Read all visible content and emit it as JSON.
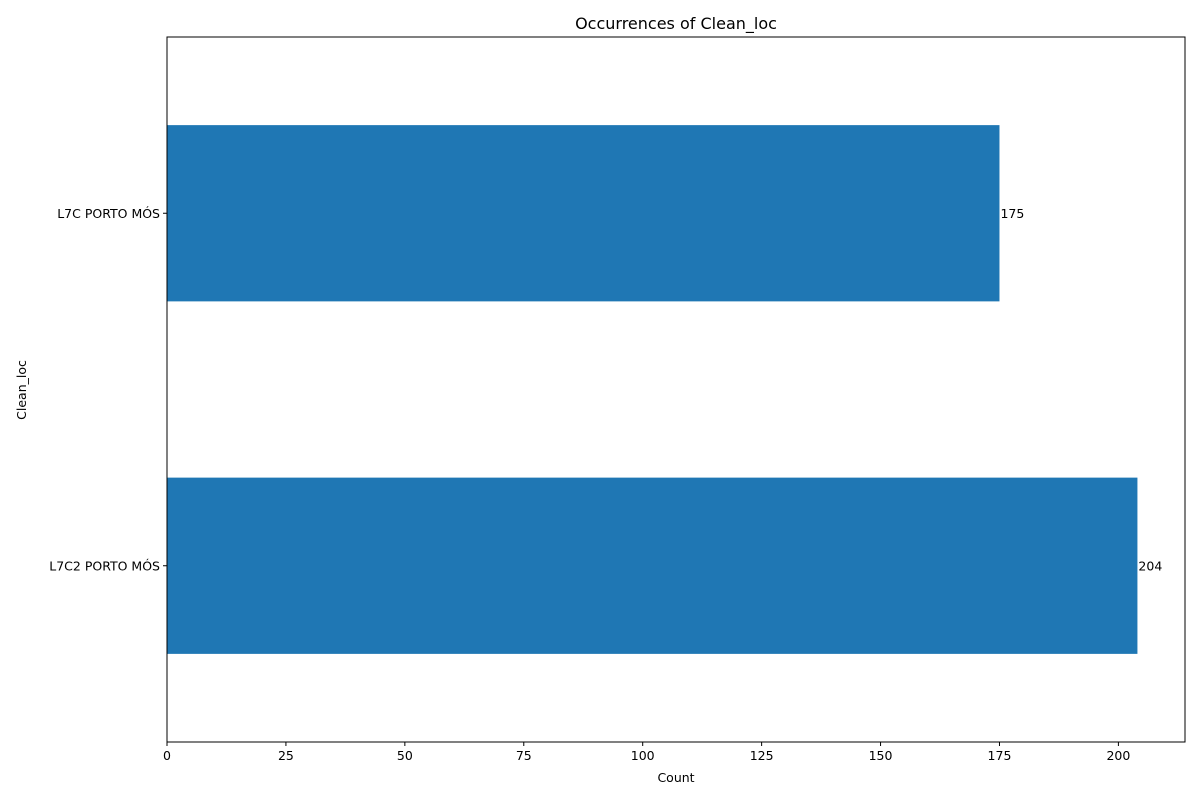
{
  "chart_data": {
    "type": "bar",
    "orientation": "horizontal",
    "title": "Occurrences of Clean_loc",
    "xlabel": "Count",
    "ylabel": "Clean_loc",
    "categories": [
      "L7C PORTO MÓS",
      "L7C2 PORTO MÓS"
    ],
    "values": [
      175,
      204
    ],
    "data_labels": [
      "175",
      "204"
    ],
    "xlim": [
      0,
      214
    ],
    "x_ticks": [
      0,
      25,
      50,
      75,
      100,
      125,
      150,
      175,
      200
    ],
    "x_tick_labels": [
      "0",
      "25",
      "50",
      "75",
      "100",
      "125",
      "150",
      "175",
      "200"
    ],
    "grid": false,
    "legend": "none",
    "bar_color": "#1f77b4"
  }
}
